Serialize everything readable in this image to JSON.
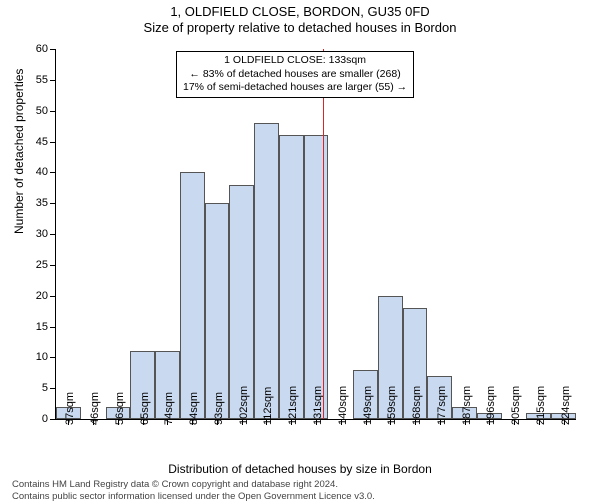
{
  "title": "1, OLDFIELD CLOSE, BORDON, GU35 0FD",
  "subtitle": "Size of property relative to detached houses in Bordon",
  "y_axis_title": "Number of detached properties",
  "x_axis_title": "Distribution of detached houses by size in Bordon",
  "chart": {
    "type": "histogram",
    "ylim": [
      0,
      60
    ],
    "ytick_step": 5,
    "background_color": "#ffffff",
    "bar_fill": "#c9d9f0",
    "bar_border": "#555555",
    "marker_color": "#d62728",
    "marker_x_value": 133,
    "label_fontsize": 11,
    "title_fontsize": 13,
    "categories": [
      "37sqm",
      "46sqm",
      "56sqm",
      "65sqm",
      "74sqm",
      "84sqm",
      "93sqm",
      "102sqm",
      "112sqm",
      "121sqm",
      "131sqm",
      "140sqm",
      "149sqm",
      "159sqm",
      "168sqm",
      "177sqm",
      "187sqm",
      "196sqm",
      "205sqm",
      "215sqm",
      "224sqm"
    ],
    "values": [
      2,
      0,
      2,
      11,
      11,
      40,
      35,
      38,
      48,
      46,
      46,
      0,
      8,
      20,
      18,
      7,
      2,
      1,
      0,
      1,
      1
    ]
  },
  "annotation": {
    "line1": "1 OLDFIELD CLOSE: 133sqm",
    "line2": "← 83% of detached houses are smaller (268)",
    "line3": "17% of semi-detached houses are larger (55) →"
  },
  "footer": {
    "line1": "Contains HM Land Registry data © Crown copyright and database right 2024.",
    "line2": "Contains public sector information licensed under the Open Government Licence v3.0."
  }
}
